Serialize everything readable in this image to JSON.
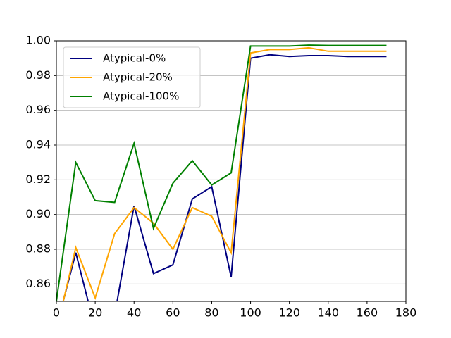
{
  "chart_data": {
    "type": "line",
    "x": [
      0,
      10,
      20,
      30,
      40,
      50,
      60,
      70,
      80,
      90,
      100,
      110,
      120,
      130,
      140,
      150,
      160,
      170
    ],
    "series": [
      {
        "name": "Atypical-0%",
        "color": "#000080",
        "values": [
          0.835,
          0.878,
          0.834,
          0.842,
          0.905,
          0.866,
          0.871,
          0.909,
          0.916,
          0.864,
          0.99,
          0.992,
          0.991,
          0.9915,
          0.9915,
          0.991,
          0.991,
          0.991
        ]
      },
      {
        "name": "Atypical-20%",
        "color": "#ffa500",
        "values": [
          0.833,
          0.881,
          0.852,
          0.889,
          0.904,
          0.895,
          0.88,
          0.904,
          0.899,
          0.878,
          0.993,
          0.995,
          0.995,
          0.996,
          0.994,
          0.994,
          0.994,
          0.994
        ]
      },
      {
        "name": "Atypical-100%",
        "color": "#008000",
        "values": [
          0.85,
          0.93,
          0.908,
          0.907,
          0.941,
          0.892,
          0.918,
          0.931,
          0.917,
          0.924,
          0.997,
          0.997,
          0.997,
          0.9975,
          0.9973,
          0.9973,
          0.9973,
          0.9973
        ]
      }
    ],
    "xlim": [
      0,
      180
    ],
    "xticks": [
      0,
      20,
      40,
      60,
      80,
      100,
      120,
      140,
      160,
      180
    ],
    "ylim": [
      0.85,
      1.0
    ],
    "yticks": [
      {
        "value": 0.86,
        "label": "0.86"
      },
      {
        "value": 0.88,
        "label": "0.88"
      },
      {
        "value": 0.9,
        "label": "0.90"
      },
      {
        "value": 0.92,
        "label": "0.92"
      },
      {
        "value": 0.94,
        "label": "0.94"
      },
      {
        "value": 0.96,
        "label": "0.96"
      },
      {
        "value": 0.98,
        "label": "0.98"
      },
      {
        "value": 1.0,
        "label": "1.00"
      }
    ],
    "grid": "y",
    "legend": "upper-left"
  }
}
